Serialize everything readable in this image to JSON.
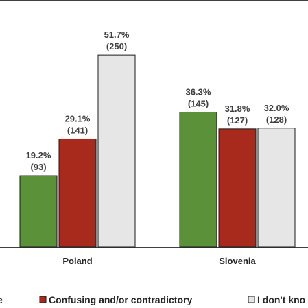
{
  "chart_data": {
    "type": "bar",
    "categories": [
      "Poland",
      "Slovenia"
    ],
    "series": [
      {
        "name": "e",
        "color": "#5b9138",
        "values": [
          19.2,
          36.3
        ],
        "counts": [
          "(93)",
          "(145)"
        ],
        "pct_labels": [
          "19.2%",
          "36.3%"
        ]
      },
      {
        "name": "Confusing and/or contradictory",
        "color": "#a82a1c",
        "values": [
          29.1,
          31.8
        ],
        "counts": [
          "(141)",
          "(127)"
        ],
        "pct_labels": [
          "29.1%",
          "31.8%"
        ]
      },
      {
        "name": "I don't kno",
        "color": "#e6e6e6",
        "values": [
          51.7,
          32.0
        ],
        "counts": [
          "(250)",
          "(128)"
        ],
        "pct_labels": [
          "51.7%",
          "32.0%"
        ]
      }
    ],
    "ylim": [
      0,
      66.5
    ],
    "grid": false,
    "legend_position": "bottom",
    "xlabel": "",
    "ylabel": "",
    "title": ""
  }
}
